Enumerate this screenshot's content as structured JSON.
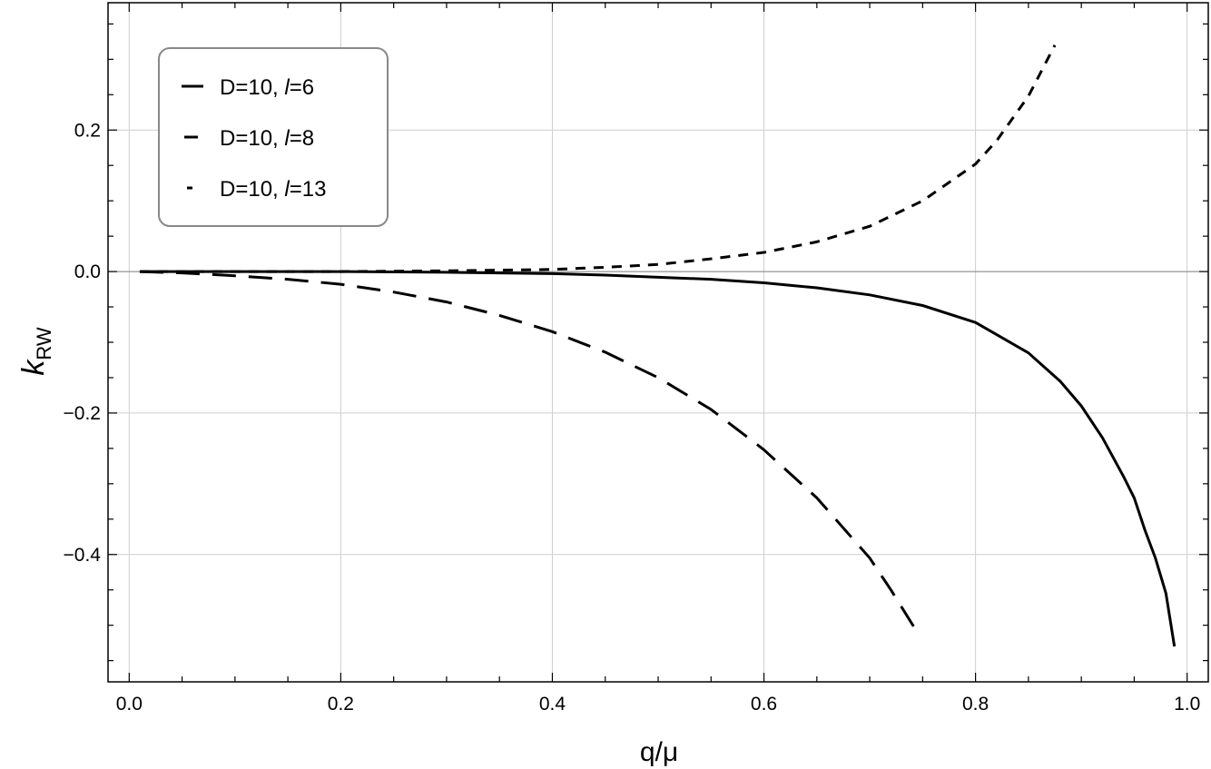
{
  "chart_data": {
    "type": "line",
    "xlabel": "q/μ",
    "ylabel_main": "k",
    "ylabel_sub": "RW",
    "xlim": [
      -0.02,
      1.02
    ],
    "ylim": [
      -0.58,
      0.38
    ],
    "xticks": [
      0.0,
      0.2,
      0.4,
      0.6,
      0.8,
      1.0
    ],
    "xtick_labels": [
      "0.0",
      "0.2",
      "0.4",
      "0.6",
      "0.8",
      "1.0"
    ],
    "yticks": [
      -0.4,
      -0.2,
      0.0,
      0.2
    ],
    "ytick_labels": [
      "−0.4",
      "−0.2",
      "0.0",
      "0.2"
    ],
    "grid": true,
    "legend_position": "top-left",
    "series": [
      {
        "name": "D=10, l=6",
        "legend_prefix": "D=10, ",
        "legend_l": "l",
        "legend_suffix": "=6",
        "style": "solid",
        "x": [
          0.01,
          0.1,
          0.2,
          0.3,
          0.4,
          0.45,
          0.5,
          0.55,
          0.6,
          0.65,
          0.7,
          0.75,
          0.8,
          0.85,
          0.88,
          0.9,
          0.92,
          0.94,
          0.95,
          0.96,
          0.97,
          0.98,
          0.988
        ],
        "y": [
          0.0,
          0.0,
          0.0,
          -0.001,
          -0.003,
          -0.005,
          -0.008,
          -0.011,
          -0.016,
          -0.023,
          -0.033,
          -0.048,
          -0.072,
          -0.115,
          -0.155,
          -0.19,
          -0.235,
          -0.29,
          -0.32,
          -0.365,
          -0.405,
          -0.455,
          -0.53
        ]
      },
      {
        "name": "D=10, l=8",
        "legend_prefix": "D=10, ",
        "legend_l": "l",
        "legend_suffix": "=8",
        "style": "dashed",
        "x": [
          0.01,
          0.05,
          0.1,
          0.15,
          0.2,
          0.25,
          0.3,
          0.35,
          0.4,
          0.45,
          0.5,
          0.55,
          0.6,
          0.65,
          0.7,
          0.72,
          0.747
        ],
        "y": [
          0.0,
          -0.002,
          -0.006,
          -0.011,
          -0.018,
          -0.029,
          -0.043,
          -0.062,
          -0.085,
          -0.114,
          -0.15,
          -0.195,
          -0.252,
          -0.32,
          -0.405,
          -0.45,
          -0.515
        ]
      },
      {
        "name": "D=10, l=13",
        "legend_prefix": "D=10, ",
        "legend_l": "l",
        "legend_suffix": "=13",
        "style": "short-dashed",
        "x": [
          0.01,
          0.1,
          0.2,
          0.3,
          0.4,
          0.45,
          0.5,
          0.55,
          0.6,
          0.65,
          0.7,
          0.75,
          0.8,
          0.82,
          0.85,
          0.875
        ],
        "y": [
          0.0,
          0.0,
          0.0,
          0.001,
          0.003,
          0.006,
          0.01,
          0.018,
          0.027,
          0.042,
          0.064,
          0.1,
          0.152,
          0.185,
          0.248,
          0.32
        ]
      }
    ]
  }
}
